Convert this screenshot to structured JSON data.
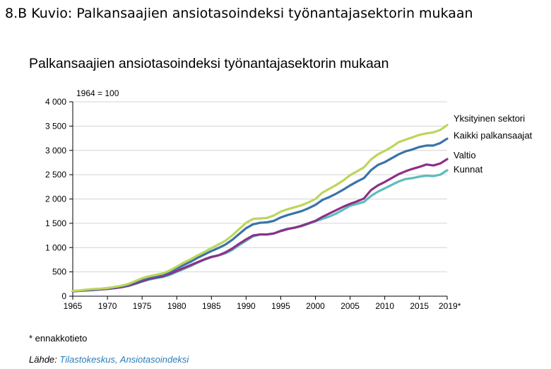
{
  "heading": "8.B Kuvio: Palkansaajien ansiotasoindeksi työnantajasektorin mukaan",
  "footnote": "* ennakkotieto",
  "source": {
    "label": "Lähde:",
    "links": "Tilastokeskus, Ansiotasoindeksi"
  },
  "colors": {
    "yksityinen": "#bcd65a",
    "kaikki": "#3a73a8",
    "valtio": "#8e2f88",
    "kunnat": "#5cbcbc"
  },
  "chart_data": {
    "type": "line",
    "title": "Palkansaajien ansiotasoindeksi työnantajasektorin mukaan",
    "unit_label": "1964 = 100",
    "xlim": [
      1965,
      2019
    ],
    "ylim": [
      0,
      4000
    ],
    "x_ticks": [
      1965,
      1970,
      1975,
      1980,
      1985,
      1990,
      1995,
      2000,
      2005,
      2010,
      2015,
      2019
    ],
    "x_tick_labels": [
      "1965",
      "1970",
      "1975",
      "1980",
      "1985",
      "1990",
      "1995",
      "2000",
      "2005",
      "2010",
      "2015",
      "2019*"
    ],
    "y_ticks": [
      0,
      500,
      1000,
      1500,
      2000,
      2500,
      3000,
      3500,
      4000
    ],
    "y_tick_labels": [
      "0",
      "500",
      "1 000",
      "1 500",
      "2 000",
      "2 500",
      "3 000",
      "3 500",
      "4 000"
    ],
    "grid": "horizontal",
    "legend": "line-end labels, right",
    "x": [
      1965,
      1966,
      1967,
      1968,
      1969,
      1970,
      1971,
      1972,
      1973,
      1974,
      1975,
      1976,
      1977,
      1978,
      1979,
      1980,
      1981,
      1982,
      1983,
      1984,
      1985,
      1986,
      1987,
      1988,
      1989,
      1990,
      1991,
      1992,
      1993,
      1994,
      1995,
      1996,
      1997,
      1998,
      1999,
      2000,
      2001,
      2002,
      2003,
      2004,
      2005,
      2006,
      2007,
      2008,
      2009,
      2010,
      2011,
      2012,
      2013,
      2014,
      2015,
      2016,
      2017,
      2018,
      2019
    ],
    "series": [
      {
        "name": "Yksityinen sektori",
        "color_key": "yksityinen",
        "values": [
          108,
          120,
          135,
          148,
          155,
          168,
          190,
          215,
          250,
          310,
          370,
          410,
          440,
          470,
          530,
          610,
          690,
          760,
          840,
          910,
          990,
          1060,
          1140,
          1250,
          1380,
          1510,
          1590,
          1600,
          1610,
          1660,
          1740,
          1790,
          1830,
          1870,
          1930,
          2000,
          2130,
          2210,
          2290,
          2380,
          2490,
          2570,
          2650,
          2810,
          2920,
          2990,
          3070,
          3170,
          3220,
          3270,
          3320,
          3350,
          3370,
          3420,
          3520
        ]
      },
      {
        "name": "Kaikki palkansaajat",
        "color_key": "kaikki",
        "values": [
          105,
          115,
          128,
          138,
          148,
          160,
          180,
          200,
          235,
          290,
          345,
          385,
          415,
          445,
          500,
          570,
          640,
          710,
          790,
          860,
          930,
          990,
          1060,
          1160,
          1280,
          1400,
          1480,
          1510,
          1520,
          1550,
          1620,
          1670,
          1710,
          1750,
          1810,
          1880,
          1980,
          2040,
          2110,
          2190,
          2280,
          2360,
          2430,
          2590,
          2700,
          2760,
          2840,
          2920,
          2980,
          3020,
          3070,
          3100,
          3100,
          3150,
          3240
        ]
      },
      {
        "name": "Valtio",
        "color_key": "valtio",
        "values": [
          100,
          110,
          120,
          130,
          140,
          150,
          165,
          185,
          215,
          260,
          310,
          355,
          385,
          410,
          460,
          520,
          580,
          640,
          700,
          760,
          810,
          840,
          900,
          980,
          1080,
          1170,
          1250,
          1270,
          1270,
          1290,
          1340,
          1380,
          1410,
          1450,
          1500,
          1550,
          1630,
          1700,
          1770,
          1840,
          1900,
          1950,
          2010,
          2180,
          2280,
          2350,
          2430,
          2510,
          2570,
          2620,
          2660,
          2710,
          2690,
          2730,
          2820
        ]
      },
      {
        "name": "Kunnat",
        "color_key": "kunnat",
        "values": [
          100,
          110,
          120,
          130,
          140,
          150,
          165,
          185,
          210,
          250,
          300,
          340,
          370,
          395,
          440,
          500,
          560,
          620,
          690,
          750,
          800,
          840,
          880,
          950,
          1050,
          1140,
          1230,
          1270,
          1270,
          1290,
          1350,
          1390,
          1410,
          1440,
          1490,
          1540,
          1590,
          1640,
          1700,
          1780,
          1860,
          1900,
          1940,
          2060,
          2150,
          2220,
          2290,
          2360,
          2410,
          2430,
          2460,
          2480,
          2470,
          2500,
          2590
        ]
      }
    ]
  }
}
